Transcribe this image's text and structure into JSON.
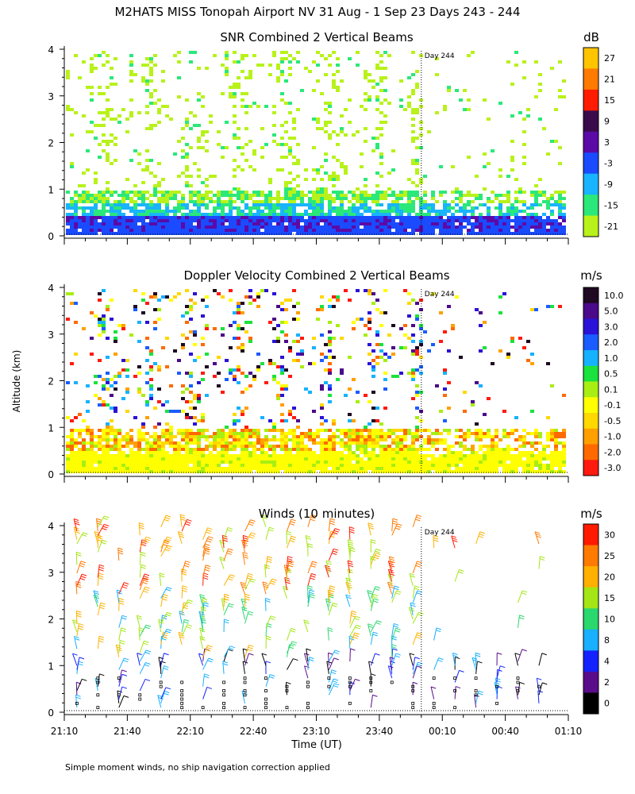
{
  "figure_title": "M2HATS MISS Tonopah Airport NV  31 Aug -  1 Sep 23 Days 243 - 244",
  "ylabel": "Altitude (km)",
  "xlabel": "Time (UT)",
  "footnote": "Simple moment winds, no ship navigation correction applied",
  "day_marker": "Day 244",
  "chart_data": [
    {
      "type": "heatmap",
      "title": "SNR Combined 2 Vertical Beams",
      "units": "dB",
      "x_ticks": [
        "21:10",
        "21:40",
        "22:10",
        "22:40",
        "23:10",
        "23:40",
        "00:10",
        "00:40",
        "01:10"
      ],
      "y_ticks": [
        "0",
        "1",
        "2",
        "3",
        "4"
      ],
      "ylim": [
        0,
        4
      ],
      "day_marker_time": "00:00",
      "colorbar": {
        "labels": [
          "27",
          "21",
          "15",
          "9",
          "3",
          "-3",
          "-9",
          "-15",
          "-21"
        ],
        "colors": [
          "#ffc400",
          "#ff7a00",
          "#ff1c00",
          "#3a0b4a",
          "#5b0aa8",
          "#1a4bff",
          "#19b4ff",
          "#2be87a",
          "#b8f21a"
        ]
      },
      "summary": "Strong returns below 0.5 km, moderate layer near 0.6-1.0 km, scattered weak echoes up to 4 km before Day 244"
    },
    {
      "type": "heatmap",
      "title": "Doppler Velocity Combined 2 Vertical Beams",
      "units": "m/s",
      "x_ticks": [
        "21:10",
        "21:40",
        "22:10",
        "22:40",
        "23:10",
        "23:40",
        "00:10",
        "00:40",
        "01:10"
      ],
      "y_ticks": [
        "0",
        "1",
        "2",
        "3",
        "4"
      ],
      "ylim": [
        0,
        4
      ],
      "day_marker_time": "00:00",
      "colorbar": {
        "labels": [
          "10.0",
          "5.0",
          "3.0",
          "2.0",
          "1.0",
          "0.5",
          "0.1",
          "-0.1",
          "-0.5",
          "-1.0",
          "-2.0",
          "-3.0"
        ],
        "colors": [
          "#1e0822",
          "#4a0a8a",
          "#2a12d8",
          "#1a5cff",
          "#16b2ff",
          "#1be23c",
          "#a8ee12",
          "#ffff00",
          "#ffd800",
          "#ffa000",
          "#ff6a00",
          "#ff1a10"
        ]
      },
      "summary": "Near-zero velocities (yellow) in the boundary layer below 1 km; scattered updraft/downdraft patches aloft"
    },
    {
      "type": "scatter",
      "title": "Winds (10 minutes)",
      "units": "m/s",
      "x_ticks": [
        "21:10",
        "21:40",
        "22:10",
        "22:40",
        "23:10",
        "23:40",
        "00:10",
        "00:40",
        "01:10"
      ],
      "y_ticks": [
        "0",
        "1",
        "2",
        "3",
        "4"
      ],
      "ylim": [
        0,
        4
      ],
      "day_marker_time": "00:00",
      "colorbar": {
        "labels": [
          "30",
          "25",
          "20",
          "15",
          "10",
          "8",
          "4",
          "2",
          "0"
        ],
        "colors": [
          "#ff1a00",
          "#ff7a00",
          "#ffb000",
          "#a4e614",
          "#2bd86e",
          "#18b0ff",
          "#1422ff",
          "#5a0c8a",
          "#000000"
        ]
      },
      "summary": "Wind barbs every 10 minutes; speeds 0-10 m/s near surface, 15-30 m/s aloft (2.5-4 km)"
    }
  ]
}
